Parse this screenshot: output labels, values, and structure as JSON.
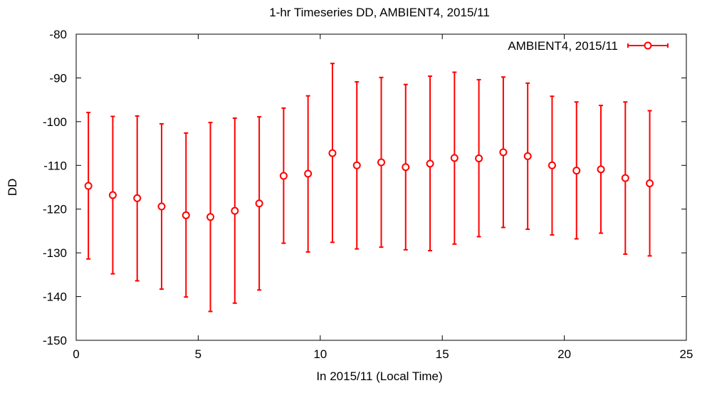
{
  "chart_data": {
    "type": "scatter",
    "title": "1-hr Timeseries DD, AMBIENT4, 2015/11",
    "xlabel": "In 2015/11 (Local Time)",
    "ylabel": "DD",
    "xlim": [
      0,
      25
    ],
    "ylim": [
      -150,
      -80
    ],
    "x_ticks": [
      0,
      5,
      10,
      15,
      20,
      25
    ],
    "y_ticks": [
      -150,
      -140,
      -130,
      -120,
      -110,
      -100,
      -90,
      -80
    ],
    "grid": false,
    "legend_position": "top-right",
    "series": [
      {
        "name": "AMBIENT4, 2015/11",
        "color": "#ff0000",
        "marker": "circle",
        "error_bars": true,
        "points": [
          {
            "x": 0.5,
            "y": -114.7,
            "ylow": -131.4,
            "yhigh": -97.9
          },
          {
            "x": 1.5,
            "y": -116.8,
            "ylow": -134.8,
            "yhigh": -98.8
          },
          {
            "x": 2.5,
            "y": -117.5,
            "ylow": -136.4,
            "yhigh": -98.7
          },
          {
            "x": 3.5,
            "y": -119.4,
            "ylow": -138.3,
            "yhigh": -100.5
          },
          {
            "x": 4.5,
            "y": -121.4,
            "ylow": -140.1,
            "yhigh": -102.6
          },
          {
            "x": 5.5,
            "y": -121.8,
            "ylow": -143.4,
            "yhigh": -100.2
          },
          {
            "x": 6.5,
            "y": -120.4,
            "ylow": -141.5,
            "yhigh": -99.2
          },
          {
            "x": 7.5,
            "y": -118.7,
            "ylow": -138.5,
            "yhigh": -98.9
          },
          {
            "x": 8.5,
            "y": -112.4,
            "ylow": -127.8,
            "yhigh": -96.9
          },
          {
            "x": 9.5,
            "y": -111.9,
            "ylow": -129.8,
            "yhigh": -94.1
          },
          {
            "x": 10.5,
            "y": -107.2,
            "ylow": -127.6,
            "yhigh": -86.7
          },
          {
            "x": 11.5,
            "y": -110.0,
            "ylow": -129.1,
            "yhigh": -90.9
          },
          {
            "x": 12.5,
            "y": -109.3,
            "ylow": -128.7,
            "yhigh": -89.9
          },
          {
            "x": 13.5,
            "y": -110.4,
            "ylow": -129.3,
            "yhigh": -91.5
          },
          {
            "x": 14.5,
            "y": -109.6,
            "ylow": -129.5,
            "yhigh": -89.6
          },
          {
            "x": 15.5,
            "y": -108.3,
            "ylow": -128.0,
            "yhigh": -88.7
          },
          {
            "x": 16.5,
            "y": -108.4,
            "ylow": -126.3,
            "yhigh": -90.4
          },
          {
            "x": 17.5,
            "y": -107.0,
            "ylow": -124.2,
            "yhigh": -89.8
          },
          {
            "x": 18.5,
            "y": -107.9,
            "ylow": -124.6,
            "yhigh": -91.2
          },
          {
            "x": 19.5,
            "y": -110.0,
            "ylow": -125.9,
            "yhigh": -94.2
          },
          {
            "x": 20.5,
            "y": -111.2,
            "ylow": -126.8,
            "yhigh": -95.5
          },
          {
            "x": 21.5,
            "y": -110.9,
            "ylow": -125.5,
            "yhigh": -96.3
          },
          {
            "x": 22.5,
            "y": -112.9,
            "ylow": -130.3,
            "yhigh": -95.5
          },
          {
            "x": 23.5,
            "y": -114.1,
            "ylow": -130.7,
            "yhigh": -97.5
          }
        ]
      }
    ]
  }
}
